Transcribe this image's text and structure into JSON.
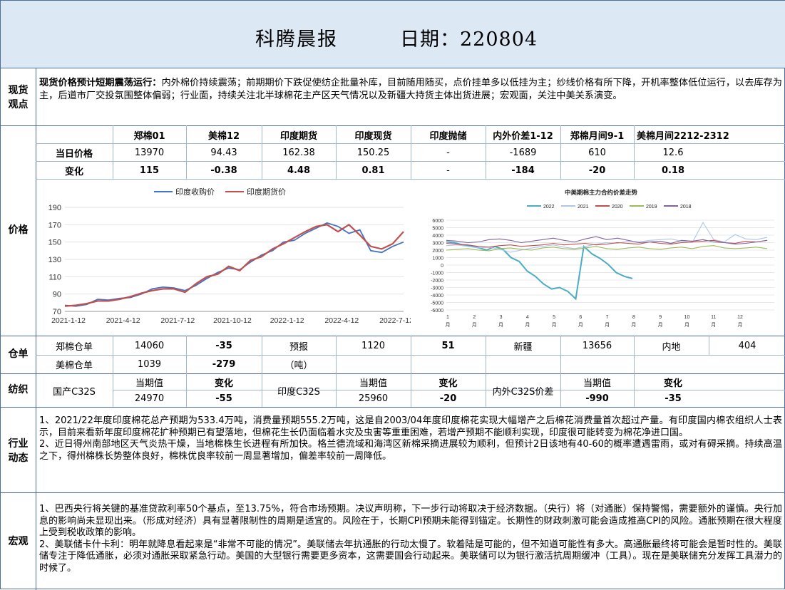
{
  "header": {
    "title": "科腾晨报",
    "date": "日期：220804"
  },
  "spot": {
    "label1": "现货",
    "label2": "观点",
    "lead": "现货价格预计短期震荡运行：",
    "text": "内外棉价持续震荡；前期期价下跌促使纺企批量补库，目前随用随买，点价挂单多以低挂为主；纱线价格有所下降，开机率整体低位运行，以去库存为主，后道市厂交投氛围整体偏弱；行业面，持续关注北半球棉花主产区天气情况以及新疆大持货主体出货进展；宏观面，关注中美关系演变。"
  },
  "price": {
    "section_label": "价格",
    "headers": [
      "郑棉01",
      "美棉12",
      "印度期货",
      "印度现货",
      "印度抛储",
      "内外价差1-12",
      "郑棉月间9-1",
      "美棉月间2212-2312"
    ],
    "row1_label": "当日价格",
    "row1": [
      "13970",
      "94.43",
      "162.38",
      "150.25",
      "-",
      "-1689",
      "610",
      "12.6"
    ],
    "row2_label": "变化",
    "row2": [
      "115",
      "-0.38",
      "4.48",
      "0.81",
      "-",
      "-184",
      "-20",
      "0.18"
    ]
  },
  "chart_data": [
    {
      "type": "line",
      "title": "",
      "legend": [
        "印度收购价",
        "印度期货价"
      ],
      "ylim": [
        70,
        190
      ],
      "yticks": [
        "190",
        "170",
        "150",
        "130",
        "110",
        "90",
        "70"
      ],
      "xticks": [
        "2021-1-12",
        "2021-4-12",
        "2021-7-12",
        "2021-10-12",
        "2022-1-12",
        "2022-4-12",
        "2022-7-12"
      ],
      "series": [
        {
          "name": "印度收购价",
          "color": "#4472c4",
          "values": [
            77,
            76,
            78,
            84,
            83,
            85,
            86,
            90,
            96,
            98,
            97,
            94,
            100,
            108,
            115,
            120,
            118,
            127,
            135,
            140,
            150,
            152,
            160,
            166,
            172,
            168,
            160,
            164,
            140,
            138,
            145,
            150
          ]
        },
        {
          "name": "印度期货价",
          "color": "#c0504d",
          "values": [
            76,
            77,
            79,
            82,
            82,
            84,
            87,
            91,
            94,
            96,
            96,
            92,
            102,
            110,
            113,
            122,
            117,
            129,
            133,
            142,
            148,
            155,
            162,
            168,
            170,
            162,
            170,
            158,
            145,
            142,
            148,
            162
          ]
        }
      ]
    },
    {
      "type": "line",
      "title": "中美期棉主力合约价差走势",
      "legend": [
        "2022",
        "2021",
        "2020",
        "2019",
        "2018"
      ],
      "ylim": [
        -6000,
        6000
      ],
      "yticks": [
        "6000",
        "5000",
        "4000",
        "3000",
        "2000",
        "1000",
        "0",
        "-1000",
        "-2000",
        "-3000",
        "-4000",
        "-5000",
        "-6000"
      ],
      "xticks": [
        "1\n月",
        "2\n月",
        "3\n月",
        "4\n月",
        "5\n月",
        "6\n月",
        "7\n月",
        "8\n月",
        "9\n月",
        "10\n月",
        "11\n月",
        "12\n月"
      ],
      "series": [
        {
          "name": "2022",
          "color": "#4bacc6",
          "values": [
            3100,
            3000,
            2700,
            2600,
            2300,
            2000,
            2500,
            2100,
            1000,
            500,
            -800,
            -1500,
            -2500,
            -3200,
            -3000,
            -3500,
            -4500,
            2500,
            1500,
            900,
            100,
            -1000,
            -1500,
            -1800
          ]
        },
        {
          "name": "2021",
          "color": "#aec7e8",
          "values": [
            2600,
            2700,
            2500,
            2300,
            2400,
            2100,
            1700,
            2000,
            2300,
            2500,
            2700,
            2400,
            2200,
            2500,
            2800,
            3000,
            2900,
            3200,
            3100,
            3300,
            3400,
            3500,
            3200,
            3000,
            5700,
            3400,
            3100,
            4100,
            3500,
            3400,
            3700
          ]
        },
        {
          "name": "2020",
          "color": "#c0504d",
          "values": [
            2900,
            2800,
            2700,
            2500,
            2400,
            2600,
            2700,
            2500,
            2600,
            2700,
            2900,
            2700,
            2800,
            2900,
            2700,
            2800,
            3000,
            2900,
            2800,
            3100,
            2900,
            2800,
            3000,
            3100,
            3200,
            3300,
            3000,
            2900,
            3200,
            3100,
            3300
          ]
        },
        {
          "name": "2019",
          "color": "#9bbb59",
          "values": [
            2000,
            2100,
            2200,
            2000,
            1900,
            2200,
            2300,
            2100,
            2000,
            2300,
            2400,
            2200,
            2100,
            2300,
            2500,
            2200,
            2100,
            2300,
            2400,
            2200,
            2100,
            2300,
            2400,
            2200,
            2500,
            2600,
            2300,
            2200,
            2300,
            2400,
            2200
          ]
        },
        {
          "name": "2018",
          "color": "#8064a2",
          "values": [
            3300,
            3200,
            3000,
            3100,
            3400,
            3500,
            3300,
            3000,
            3200,
            3400,
            3600,
            3300,
            3100,
            3500,
            3800,
            3400,
            3600,
            3300,
            3000,
            3100,
            3200,
            2900,
            3300,
            3200,
            3400,
            3100,
            3000,
            2800,
            2900,
            3100,
            3300
          ]
        }
      ]
    }
  ],
  "warehouse": {
    "section_label": "仓单",
    "r1": [
      "郑棉仓单",
      "14060",
      "-35",
      "预报",
      "1120",
      "51",
      "新疆",
      "13656",
      "内地",
      "404"
    ],
    "r2": [
      "美棉仓单",
      "1039",
      "-279",
      "（吨）"
    ]
  },
  "textile": {
    "section_label": "纺织",
    "cur_label": "当期值",
    "chg_label": "变化",
    "g1": {
      "name": "国产C32S",
      "value": "24970",
      "change": "-55"
    },
    "g2": {
      "name": "印度C32S",
      "value": "25960",
      "change": "-20"
    },
    "g3": {
      "name": "内外C32S价差",
      "value": "-990",
      "change": "-35"
    }
  },
  "industry": {
    "label1": "行业",
    "label2": "动态",
    "p1": "1、2021/22年度印度棉花总产预期为533.4万吨，消费量预期555.2万吨，这是自2003/04年度印度棉花实现大幅增产之后棉花消费量首次超过产量。有印度国内棉农组织人士表示，目前来看新年度印度棉花扩种预期已有望落地，但棉花生长仍面临着水灾及虫害等重重困难，若增产预期不能顺利实现，印度很可能转变为棉花净进口国。",
    "p2": "2、近日得州南部地区天气炎热干燥，当地棉株生长进程有所加快。格兰德流域和海湾区新棉采摘进展较为顺利，但预计2日该地有40-60的概率遭遇雷雨，或对有碍采摘。持续高温之下，得州棉株长势整体良好，棉株优良率较前一周显著增加，偏差率较前一周降低。"
  },
  "macro": {
    "label": "宏观",
    "p1": "1、巴西央行将关键的基准贷款利率50个基点，至13.75%，符合市场预期。决议声明称，下一步行动将取决于经济数据。（央行）将（对通胀）保持警惕，需要额外的谨慎。央行加息的影响尚未显现出来。（形成对经济）具有显著限制性的周期是适宜的。风险在于，长期CPI预期未能得到锚定。长期性的财政刺激可能会造成推高CPI的风险。通胀预期在很大程度上受到税收政策的影响。",
    "p2": "2、美联储卡什卡利：明年就降息看起来是“非常不可能的情况”。美联储去年抗通胀的行动太慢了。软着陆是可能的，但不知道可能性有多大。高通胀最终将可能会是暂时性的。美联储专注于降低通胀，必须对通胀采取紧急行动。美国的大型银行需要更多资本，这需要国会行动起来。美联储可以为银行激活抗周期缓冲（工具）。现在是美联储充分发挥工具潜力的时候了。"
  }
}
